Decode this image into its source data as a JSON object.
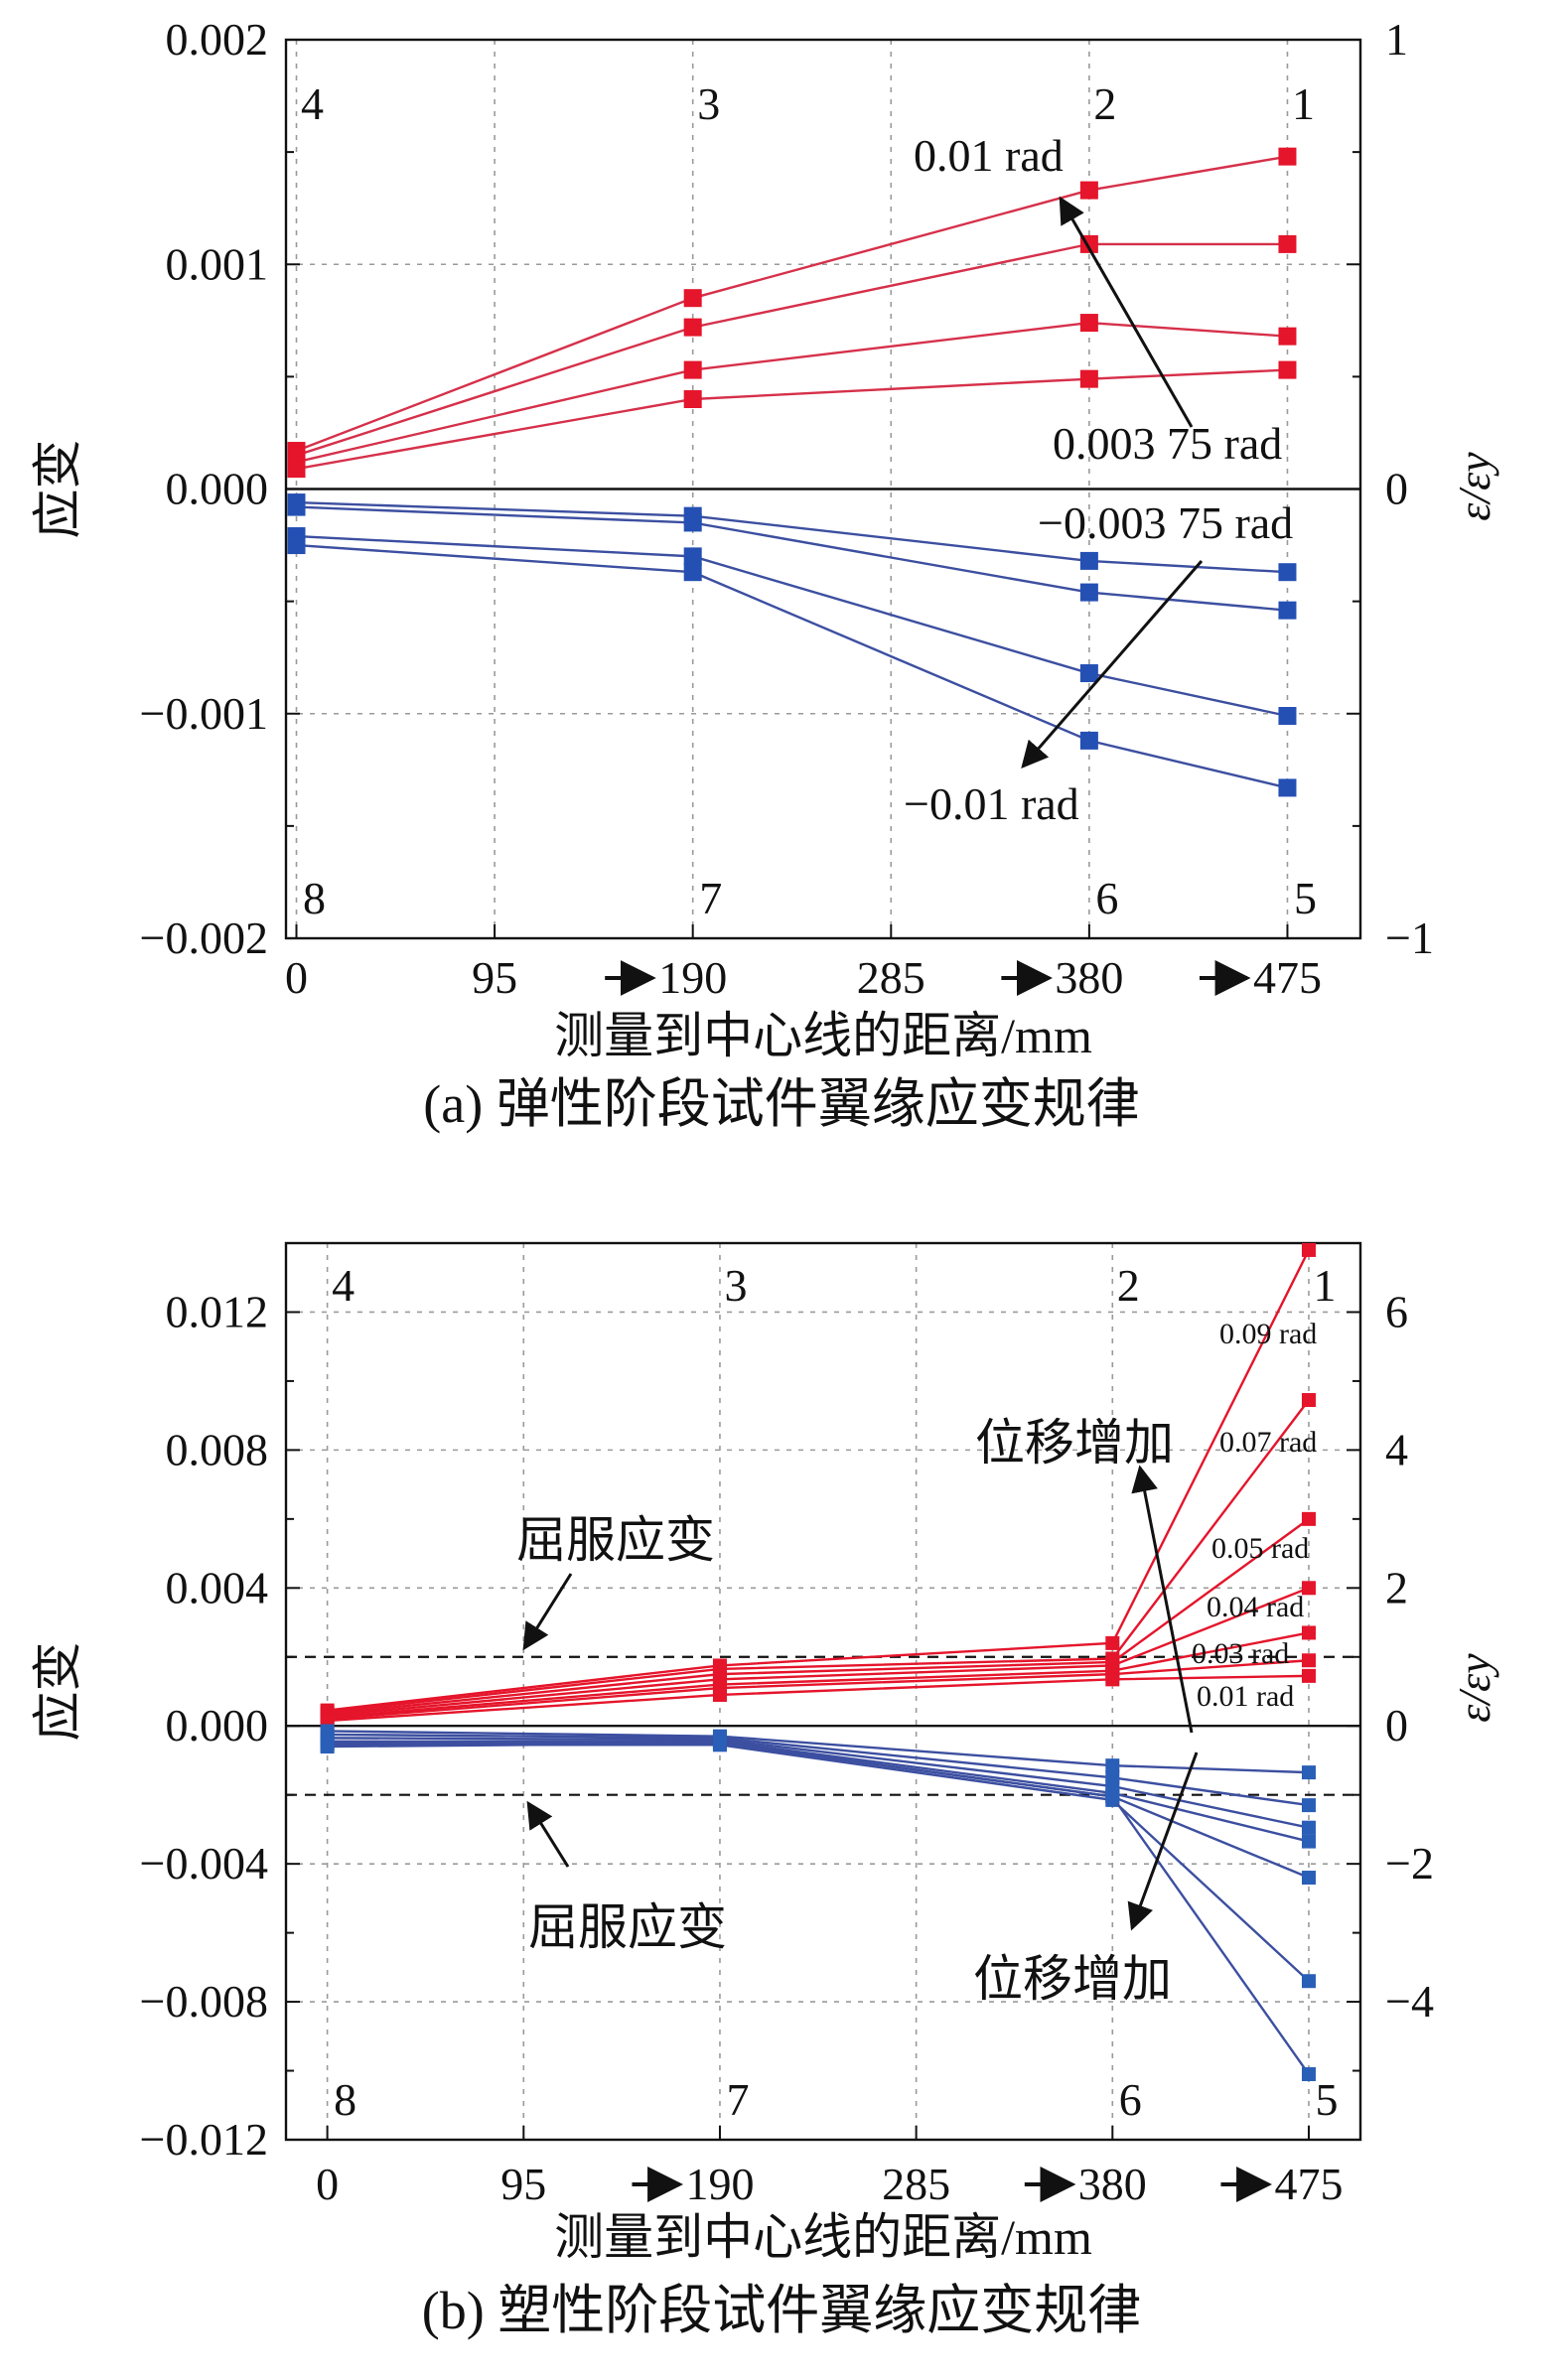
{
  "chart_data": [
    {
      "type": "line",
      "caption": "(a) 弹性阶段试件翼缘应变规律",
      "xlabel": "测量到中心线的距离/mm",
      "ylabel": "应变",
      "y2label": "ε/εy",
      "x_ticks": [
        "0",
        "95",
        "190",
        "285",
        "380",
        "475"
      ],
      "arrow_ticks": [
        190,
        380,
        475
      ],
      "xlim": [
        -5,
        510
      ],
      "ylim": [
        -0.002,
        0.002
      ],
      "y_ticks": [
        "−0.002",
        "−0.001",
        "0.000",
        "0.001",
        "0.002"
      ],
      "y_tick_values": [
        -0.002,
        -0.001,
        0.0,
        0.001,
        0.002
      ],
      "y2_ticks": [
        "−1",
        "0",
        "1"
      ],
      "y2_tick_values": [
        -0.002,
        0.0,
        0.002
      ],
      "grid": true,
      "gauge_labels_top": [
        {
          "text": "4",
          "x": 0
        },
        {
          "text": "3",
          "x": 190
        },
        {
          "text": "2",
          "x": 380
        },
        {
          "text": "1",
          "x": 475
        }
      ],
      "gauge_labels_bottom": [
        {
          "text": "8",
          "x": 0
        },
        {
          "text": "7",
          "x": 190
        },
        {
          "text": "6",
          "x": 380
        },
        {
          "text": "5",
          "x": 475
        }
      ],
      "x": [
        0,
        190,
        380,
        475
      ],
      "series": [
        {
          "color": "#e5152b",
          "line": "#d6304a",
          "values": [
            0.00017,
            0.00085,
            0.00133,
            0.00148
          ]
        },
        {
          "color": "#e5152b",
          "line": "#d6304a",
          "values": [
            0.00015,
            0.00072,
            0.00109,
            0.00109
          ]
        },
        {
          "color": "#e5152b",
          "line": "#d6304a",
          "values": [
            0.00012,
            0.00053,
            0.00074,
            0.00068
          ]
        },
        {
          "color": "#e5152b",
          "line": "#d6304a",
          "values": [
            9e-05,
            0.0004,
            0.00049,
            0.00053
          ]
        },
        {
          "color": "#2450b4",
          "line": "#3c4fa0",
          "values": [
            -6e-05,
            -0.00012,
            -0.00032,
            -0.00037
          ]
        },
        {
          "color": "#2450b4",
          "line": "#3c4fa0",
          "values": [
            -8e-05,
            -0.00015,
            -0.00046,
            -0.00054
          ]
        },
        {
          "color": "#2450b4",
          "line": "#3c4fa0",
          "values": [
            -0.00021,
            -0.0003,
            -0.00082,
            -0.00101
          ]
        },
        {
          "color": "#2450b4",
          "line": "#3c4fa0",
          "values": [
            -0.00025,
            -0.00037,
            -0.00112,
            -0.00133
          ]
        }
      ],
      "annotations": [
        {
          "text": "0.01 rad"
        },
        {
          "text": "0.003 75 rad"
        },
        {
          "text": "−0.003 75 rad"
        },
        {
          "text": "−0.01 rad"
        }
      ]
    },
    {
      "type": "line",
      "caption": "(b) 塑性阶段试件翼缘应变规律",
      "xlabel": "测量到中心线的距离/mm",
      "ylabel": "应变",
      "y2label": "ε/εy",
      "x_ticks": [
        "0",
        "95",
        "190",
        "285",
        "380",
        "475"
      ],
      "arrow_ticks": [
        190,
        380,
        475
      ],
      "xlim": [
        -20,
        500
      ],
      "ylim": [
        -0.012,
        0.014
      ],
      "y_ticks": [
        "−0.012",
        "−0.008",
        "−0.004",
        "0.000",
        "0.004",
        "0.008",
        "0.012"
      ],
      "y_tick_values": [
        -0.012,
        -0.008,
        -0.004,
        0.0,
        0.004,
        0.008,
        0.012
      ],
      "y2_ticks": [
        "−4",
        "−2",
        "0",
        "2",
        "4",
        "6"
      ],
      "y2_tick_values": [
        -0.008,
        -0.004,
        0.0,
        0.004,
        0.008,
        0.012
      ],
      "grid": true,
      "yield_strain_lines": [
        0.002,
        -0.002
      ],
      "gauge_labels_top": [
        {
          "text": "4",
          "x": 0
        },
        {
          "text": "3",
          "x": 190
        },
        {
          "text": "2",
          "x": 380
        },
        {
          "text": "1",
          "x": 475
        }
      ],
      "gauge_labels_bottom": [
        {
          "text": "8",
          "x": 0
        },
        {
          "text": "7",
          "x": 190
        },
        {
          "text": "6",
          "x": 380
        },
        {
          "text": "5",
          "x": 475
        }
      ],
      "x": [
        0,
        190,
        380,
        475
      ],
      "series": [
        {
          "color": "#e5152b",
          "line": "#e5152b",
          "values": [
            0.00045,
            0.00175,
            0.0024,
            0.0138
          ]
        },
        {
          "color": "#e5152b",
          "line": "#e5152b",
          "values": [
            0.0004,
            0.00165,
            0.00195,
            0.00945
          ]
        },
        {
          "color": "#e5152b",
          "line": "#e5152b",
          "values": [
            0.00035,
            0.0015,
            0.00185,
            0.006
          ]
        },
        {
          "color": "#e5152b",
          "line": "#e5152b",
          "values": [
            0.0003,
            0.00135,
            0.00175,
            0.004
          ]
        },
        {
          "color": "#e5152b",
          "line": "#e5152b",
          "values": [
            0.00025,
            0.0012,
            0.0016,
            0.0027
          ]
        },
        {
          "color": "#e5152b",
          "line": "#e5152b",
          "values": [
            0.0002,
            0.0011,
            0.0015,
            0.0019
          ]
        },
        {
          "color": "#e5152b",
          "line": "#e5152b",
          "values": [
            0.00015,
            0.0009,
            0.00135,
            0.00145
          ]
        },
        {
          "color": "#2a5fb8",
          "line": "#3c4fa0",
          "values": [
            -0.00015,
            -0.0003,
            -0.00115,
            -0.00135
          ]
        },
        {
          "color": "#2a5fb8",
          "line": "#3c4fa0",
          "values": [
            -0.00025,
            -0.00035,
            -0.0015,
            -0.0023
          ]
        },
        {
          "color": "#2a5fb8",
          "line": "#3c4fa0",
          "values": [
            -0.00035,
            -0.0004,
            -0.00175,
            -0.00295
          ]
        },
        {
          "color": "#2a5fb8",
          "line": "#3c4fa0",
          "values": [
            -0.00045,
            -0.00045,
            -0.00195,
            -0.00335
          ]
        },
        {
          "color": "#2a5fb8",
          "line": "#3c4fa0",
          "values": [
            -0.0005,
            -0.0005,
            -0.00205,
            -0.0044
          ]
        },
        {
          "color": "#2a5fb8",
          "line": "#3c4fa0",
          "values": [
            -0.00055,
            -0.00055,
            -0.00215,
            -0.0074
          ]
        },
        {
          "color": "#2a5fb8",
          "line": "#3c4fa0",
          "values": [
            -0.0006,
            -0.0005,
            -0.00205,
            -0.0101
          ]
        }
      ],
      "series_labels": [
        "0.09 rad",
        "0.07 rad",
        "0.05 rad",
        "0.04 rad",
        "0.03 rad",
        "0.01 rad"
      ],
      "annotations": [
        {
          "text": "屈服应变"
        },
        {
          "text": "屈服应变"
        },
        {
          "text": "位移增加"
        },
        {
          "text": "位移增加"
        }
      ]
    }
  ]
}
